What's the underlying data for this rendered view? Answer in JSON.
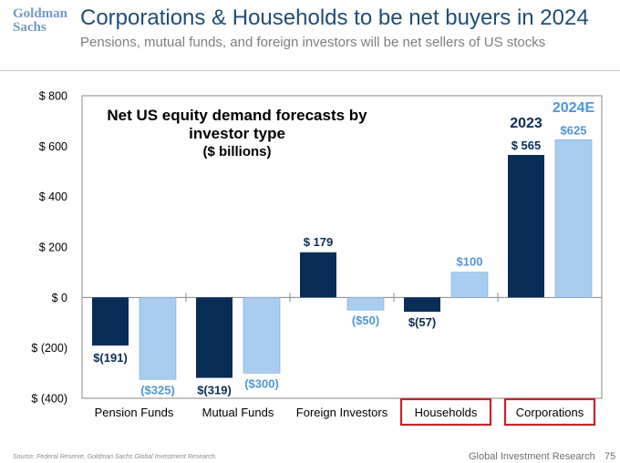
{
  "header": {
    "logo_text": "Goldman Sachs",
    "title": "Corporations & Households to be net buyers in 2024",
    "subtitle": "Pensions, mutual funds, and foreign investors will be net sellers of US stocks"
  },
  "footer": {
    "source": "Source: Federal Reserve, Goldman Sachs Global Investment Research.",
    "brand": "Global Investment Research",
    "page": "75"
  },
  "colors": {
    "dark": "#0a2d57",
    "light": "#a9cdee",
    "light_label": "#4f96d8",
    "highlight_box": "#c0252a"
  },
  "chart_data": {
    "type": "bar",
    "title": "Net US equity demand forecasts by investor type",
    "subtitle": "($ billions)",
    "categories": [
      "Pension Funds",
      "Mutual Funds",
      "Foreign Investors",
      "Households",
      "Corporations"
    ],
    "highlighted_categories": [
      "Households",
      "Corporations"
    ],
    "series": [
      {
        "name": "2023",
        "values": [
          -191,
          -319,
          179,
          -57,
          565
        ],
        "labels": [
          "$(191)",
          "$(319)",
          "$ 179",
          "$(57)",
          "$ 565"
        ]
      },
      {
        "name": "2024E",
        "values": [
          -325,
          -300,
          -50,
          100,
          625
        ],
        "labels": [
          "($325)",
          "($300)",
          "($50)",
          "$100",
          "$625"
        ]
      }
    ],
    "ylim": [
      -400,
      800
    ],
    "yticks": [
      800,
      600,
      400,
      200,
      0,
      -200,
      -400
    ],
    "ytick_labels": [
      "$ 800",
      "$ 600",
      "$ 400",
      "$ 200",
      "$ 0",
      "$ (200)",
      "$ (400)"
    ],
    "grid": false,
    "legend": "top-right, labels above the Corporations bars"
  }
}
